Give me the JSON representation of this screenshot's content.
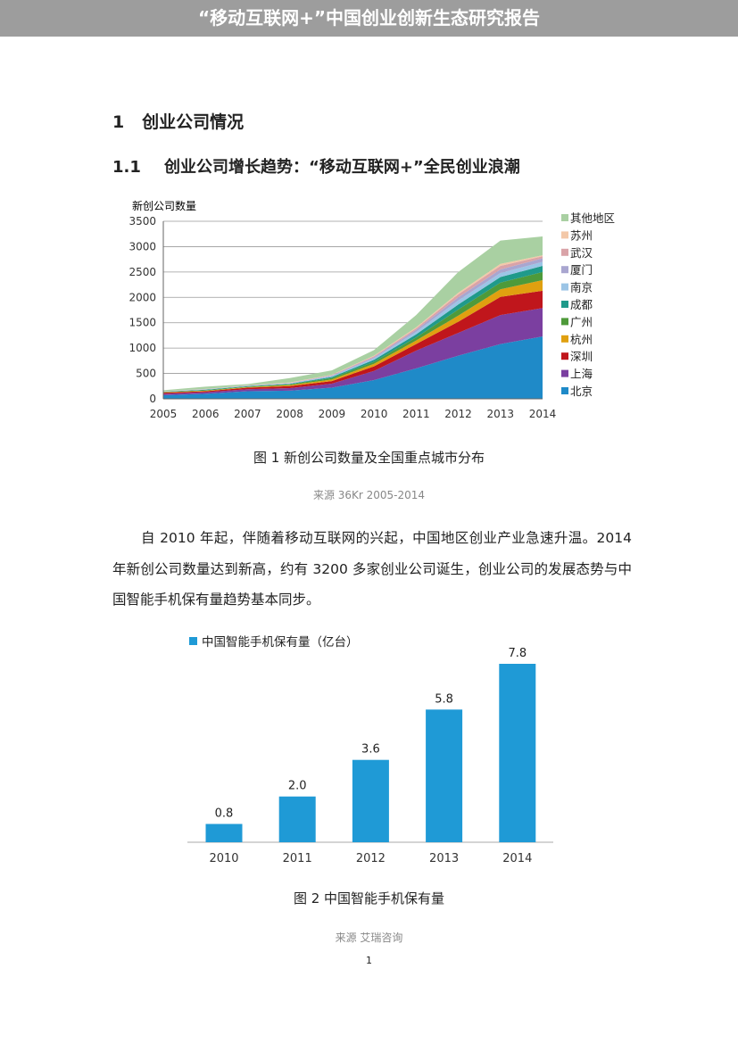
{
  "header": {
    "title": "“移动互联网+”中国创业创新生态研究报告"
  },
  "section": {
    "number": "1",
    "title": "创业公司情况"
  },
  "subsection": {
    "number": "1.1",
    "title": "创业公司增长趋势：“移动互联网+”全民创业浪潮"
  },
  "figure1": {
    "caption": "图 1  新创公司数量及全国重点城市分布",
    "source": "来源 36Kr 2005-2014"
  },
  "paragraph": "自 2010 年起，伴随着移动互联网的兴起，中国地区创业产业急速升温。2014 年新创公司数量达到新高，约有 3200 多家创业公司诞生，创业公司的发展态势与中国智能手机保有量趋势基本同步。",
  "figure2": {
    "caption": "图 2  中国智能手机保有量",
    "source": "来源  艾瑞咨询"
  },
  "page_number": "1",
  "chart_data": [
    {
      "type": "area",
      "stacked": true,
      "ylabel": "新创公司数量",
      "ylim": [
        0,
        3500
      ],
      "yticks": [
        "0",
        "500",
        "1000",
        "1500",
        "2000",
        "2500",
        "3000",
        "3500"
      ],
      "grid": true,
      "legend": "right",
      "x": [
        "2005",
        "2006",
        "2007",
        "2008",
        "2009",
        "2010",
        "2011",
        "2012",
        "2013",
        "2014"
      ],
      "series": [
        {
          "name": "北京",
          "color": "#1f8ac8",
          "values": [
            70,
            100,
            150,
            160,
            220,
            370,
            600,
            850,
            1080,
            1230
          ]
        },
        {
          "name": "上海",
          "color": "#7b3fa0",
          "values": [
            30,
            30,
            40,
            50,
            80,
            180,
            350,
            450,
            570,
            560
          ]
        },
        {
          "name": "深圳",
          "color": "#c0161c",
          "values": [
            20,
            20,
            30,
            40,
            50,
            90,
            130,
            220,
            360,
            340
          ]
        },
        {
          "name": "杭州",
          "color": "#e0a010",
          "values": [
            10,
            10,
            10,
            20,
            30,
            50,
            70,
            120,
            150,
            210
          ]
        },
        {
          "name": "广州",
          "color": "#4e9a3a",
          "values": [
            5,
            10,
            10,
            15,
            30,
            40,
            60,
            120,
            130,
            160
          ]
        },
        {
          "name": "成都",
          "color": "#1f9a8a",
          "values": [
            5,
            10,
            10,
            10,
            20,
            40,
            60,
            100,
            110,
            120
          ]
        },
        {
          "name": "南京",
          "color": "#9cc5e6",
          "values": [
            5,
            5,
            5,
            10,
            20,
            30,
            50,
            80,
            80,
            80
          ]
        },
        {
          "name": "厦门",
          "color": "#a9a6d0",
          "values": [
            3,
            5,
            5,
            5,
            10,
            20,
            40,
            60,
            70,
            70
          ]
        },
        {
          "name": "武汉",
          "color": "#d9a3a8",
          "values": [
            2,
            3,
            3,
            5,
            10,
            20,
            30,
            60,
            70,
            40
          ]
        },
        {
          "name": "苏州",
          "color": "#f3c8a8",
          "values": [
            2,
            2,
            2,
            5,
            5,
            10,
            20,
            30,
            40,
            20
          ]
        },
        {
          "name": "其他地区",
          "color": "#a9d0a2",
          "values": [
            18,
            45,
            25,
            90,
            85,
            110,
            240,
            410,
            460,
            370
          ]
        }
      ]
    },
    {
      "type": "bar",
      "legend": "top-left",
      "categories": [
        "2010",
        "2011",
        "2012",
        "2013",
        "2014"
      ],
      "series": [
        {
          "name": "中国智能手机保有量（亿台）",
          "color": "#1f9ad6",
          "values": [
            0.8,
            2.0,
            3.6,
            5.8,
            7.8
          ]
        }
      ],
      "data_labels": [
        "0.8",
        "2.0",
        "3.6",
        "5.8",
        "7.8"
      ],
      "ylim": [
        0,
        7.8
      ]
    }
  ]
}
